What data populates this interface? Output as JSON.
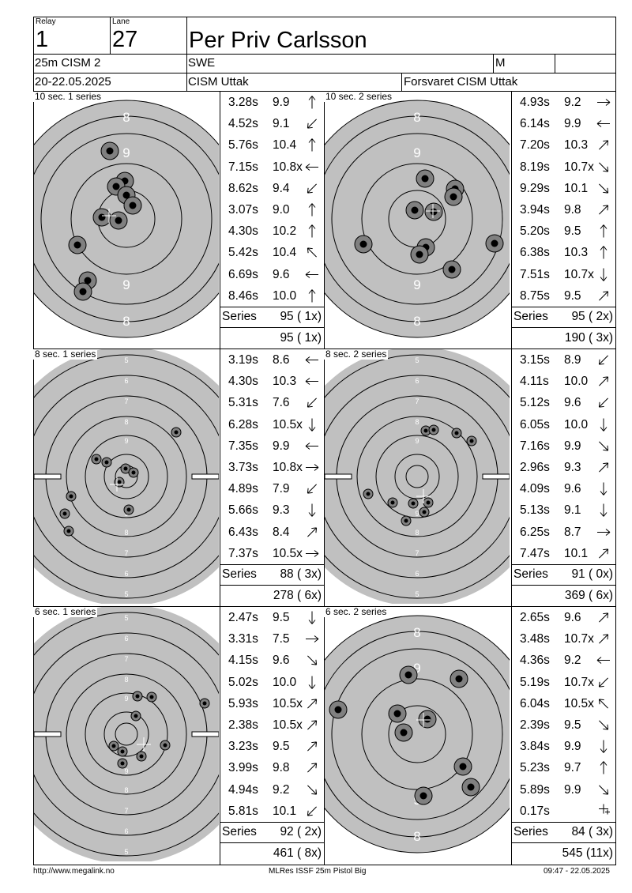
{
  "header": {
    "relay_label": "Relay",
    "relay_value": "1",
    "lane_label": "Lane",
    "lane_value": "27",
    "shooter_name": "Per Priv Carlsson",
    "event": "25m CISM 2",
    "nation": "SWE",
    "gender": "M",
    "date": "20-22.05.2025",
    "competition": "CISM Uttak",
    "organizer": "Forsvaret CISM Uttak"
  },
  "series": [
    {
      "title": "10 sec. 1 series",
      "series_label": "Series",
      "series_total": "95 ( 1x)",
      "running_total": "95 ( 1x)",
      "shots": [
        [
          "3.28s",
          "9.9",
          "up"
        ],
        [
          "4.52s",
          "9.1",
          "down-left"
        ],
        [
          "5.76s",
          "10.4",
          "up"
        ],
        [
          "7.15s",
          "10.8x",
          "left"
        ],
        [
          "8.62s",
          "9.4",
          "down-left"
        ],
        [
          "3.07s",
          "9.0",
          "up"
        ],
        [
          "4.30s",
          "10.2",
          "up"
        ],
        [
          "5.42s",
          "10.4",
          "up-left"
        ],
        [
          "6.69s",
          "9.6",
          "left"
        ],
        [
          "8.46s",
          "10.0",
          "up"
        ]
      ]
    },
    {
      "title": "10 sec. 2 series",
      "series_label": "Series",
      "series_total": "95 ( 2x)",
      "running_total": "190 ( 3x)",
      "shots": [
        [
          "4.93s",
          "9.2",
          "right"
        ],
        [
          "6.14s",
          "9.9",
          "left"
        ],
        [
          "7.20s",
          "10.3",
          "up-right"
        ],
        [
          "8.19s",
          "10.7x",
          "down-right"
        ],
        [
          "9.29s",
          "10.1",
          "down-right"
        ],
        [
          "3.94s",
          "9.8",
          "up-right"
        ],
        [
          "5.20s",
          "9.5",
          "up"
        ],
        [
          "6.38s",
          "10.3",
          "up"
        ],
        [
          "7.51s",
          "10.7x",
          "down"
        ],
        [
          "8.75s",
          "9.5",
          "up-right"
        ]
      ]
    },
    {
      "title": "8 sec. 1 series",
      "series_label": "Series",
      "series_total": "88 ( 3x)",
      "running_total": "278 ( 6x)",
      "shots": [
        [
          "3.19s",
          "8.6",
          "left"
        ],
        [
          "4.30s",
          "10.3",
          "left"
        ],
        [
          "5.31s",
          "7.6",
          "down-left"
        ],
        [
          "6.28s",
          "10.5x",
          "down"
        ],
        [
          "7.35s",
          "9.9",
          "left"
        ],
        [
          "3.73s",
          "10.8x",
          "right"
        ],
        [
          "4.89s",
          "7.9",
          "down-left"
        ],
        [
          "5.66s",
          "9.3",
          "down"
        ],
        [
          "6.43s",
          "8.4",
          "up-right"
        ],
        [
          "7.37s",
          "10.5x",
          "right"
        ]
      ]
    },
    {
      "title": "8 sec. 2 series",
      "series_label": "Series",
      "series_total": "91 ( 0x)",
      "running_total": "369 ( 6x)",
      "shots": [
        [
          "3.15s",
          "8.9",
          "down-left"
        ],
        [
          "4.11s",
          "10.0",
          "up-right"
        ],
        [
          "5.12s",
          "9.6",
          "down-left"
        ],
        [
          "6.05s",
          "10.0",
          "down"
        ],
        [
          "7.16s",
          "9.9",
          "down-right"
        ],
        [
          "2.96s",
          "9.3",
          "up-right"
        ],
        [
          "4.09s",
          "9.6",
          "down"
        ],
        [
          "5.13s",
          "9.1",
          "down"
        ],
        [
          "6.25s",
          "8.7",
          "right"
        ],
        [
          "7.47s",
          "10.1",
          "up-right"
        ]
      ]
    },
    {
      "title": "6 sec. 1 series",
      "series_label": "Series",
      "series_total": "92 ( 2x)",
      "running_total": "461 ( 8x)",
      "shots": [
        [
          "2.47s",
          "9.5",
          "down"
        ],
        [
          "3.31s",
          "7.5",
          "right"
        ],
        [
          "4.15s",
          "9.6",
          "down-right"
        ],
        [
          "5.02s",
          "10.0",
          "down"
        ],
        [
          "5.93s",
          "10.5x",
          "up-right"
        ],
        [
          "2.38s",
          "10.5x",
          "up-right"
        ],
        [
          "3.23s",
          "9.5",
          "up-right"
        ],
        [
          "3.99s",
          "9.8",
          "up-right"
        ],
        [
          "4.94s",
          "9.2",
          "down-right"
        ],
        [
          "5.81s",
          "10.1",
          "down-left"
        ]
      ]
    },
    {
      "title": "6 sec. 2 series",
      "series_label": "Series",
      "series_total": "84 ( 3x)",
      "running_total": "545 (11x)",
      "shots": [
        [
          "2.65s",
          "9.6",
          "up-right"
        ],
        [
          "3.48s",
          "10.7x",
          "up-right"
        ],
        [
          "4.36s",
          "9.2",
          "left"
        ],
        [
          "5.19s",
          "10.7x",
          "down-left"
        ],
        [
          "6.04s",
          "10.5x",
          "up-left"
        ],
        [
          "2.39s",
          "9.5",
          "down-right"
        ],
        [
          "3.84s",
          "9.9",
          "down"
        ],
        [
          "5.23s",
          "9.7",
          "up"
        ],
        [
          "5.89s",
          "9.9",
          "down-right"
        ],
        [
          "0.17s",
          "",
          "cross"
        ]
      ]
    }
  ],
  "footer": {
    "left": "http://www.megalink.no",
    "center": "MLRes ISSF 25m Pistol Big",
    "right": "09:47 - 22.05.2025"
  },
  "colors": {
    "target_gray": "#c0c0c0",
    "hole_outer": "#808080",
    "hole_inner": "#000000",
    "ring_label": "#ffffff"
  }
}
